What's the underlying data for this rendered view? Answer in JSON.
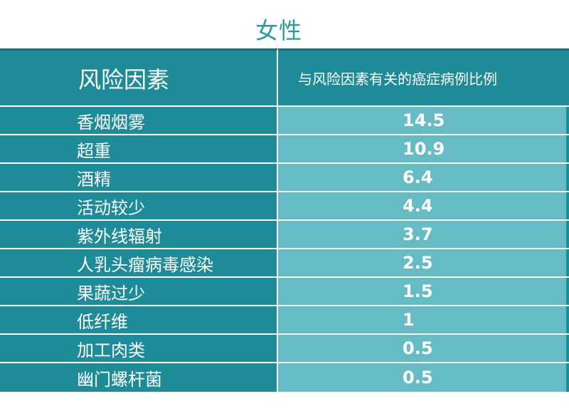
{
  "title": "女性",
  "table": {
    "header": {
      "factor": "风险因素",
      "proportion": "与风险因素有关的癌症病例比例"
    },
    "rows": [
      {
        "factor": "香烟烟雾",
        "value": "14.5"
      },
      {
        "factor": "超重",
        "value": "10.9"
      },
      {
        "factor": "酒精",
        "value": "6.4"
      },
      {
        "factor": "活动较少",
        "value": "4.4"
      },
      {
        "factor": "紫外线辐射",
        "value": "3.7"
      },
      {
        "factor": "人乳头瘤病毒感染",
        "value": "2.5"
      },
      {
        "factor": "果蔬过少",
        "value": "1.5"
      },
      {
        "factor": "低纤维",
        "value": "1"
      },
      {
        "factor": "加工肉类",
        "value": "0.5"
      },
      {
        "factor": "幽门螺杆菌",
        "value": "0.5"
      }
    ]
  },
  "colors": {
    "title": "#2a9aa6",
    "dark_teal": "#1e8c98",
    "light_teal": "#66bcc4"
  }
}
